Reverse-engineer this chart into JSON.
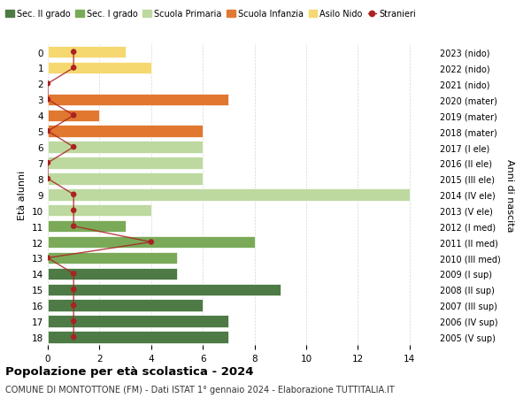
{
  "ages": [
    18,
    17,
    16,
    15,
    14,
    13,
    12,
    11,
    10,
    9,
    8,
    7,
    6,
    5,
    4,
    3,
    2,
    1,
    0
  ],
  "right_labels": [
    "2005 (V sup)",
    "2006 (IV sup)",
    "2007 (III sup)",
    "2008 (II sup)",
    "2009 (I sup)",
    "2010 (III med)",
    "2011 (II med)",
    "2012 (I med)",
    "2013 (V ele)",
    "2014 (IV ele)",
    "2015 (III ele)",
    "2016 (II ele)",
    "2017 (I ele)",
    "2018 (mater)",
    "2019 (mater)",
    "2020 (mater)",
    "2021 (nido)",
    "2022 (nido)",
    "2023 (nido)"
  ],
  "bar_values": [
    7,
    7,
    6,
    9,
    5,
    5,
    8,
    3,
    4,
    14,
    6,
    6,
    6,
    6,
    2,
    7,
    0,
    4,
    3
  ],
  "stranieri_x": [
    1,
    1,
    1,
    1,
    1,
    0,
    4,
    1,
    1,
    1,
    0,
    0,
    1,
    0,
    1,
    0,
    0,
    1,
    1
  ],
  "stranieri_color": "#aa2222",
  "sec2_color": "#4d7a45",
  "sec1_color": "#7aaa58",
  "primaria_color": "#bdd9a0",
  "infanzia_color": "#e07830",
  "nido_color": "#f5d870",
  "legend_labels": [
    "Sec. II grado",
    "Sec. I grado",
    "Scuola Primaria",
    "Scuola Infanzia",
    "Asilo Nido",
    "Stranieri"
  ],
  "ylabel_left": "Età alunni",
  "ylabel_right": "Anni di nascita",
  "title": "Popolazione per età scolastica - 2024",
  "subtitle": "COMUNE DI MONTOTTONE (FM) - Dati ISTAT 1° gennaio 2024 - Elaborazione TUTTITALIA.IT",
  "xlim": [
    0,
    15
  ],
  "xticks": [
    0,
    2,
    4,
    6,
    8,
    10,
    12,
    14
  ],
  "background_color": "#ffffff",
  "grid_color": "#cccccc"
}
